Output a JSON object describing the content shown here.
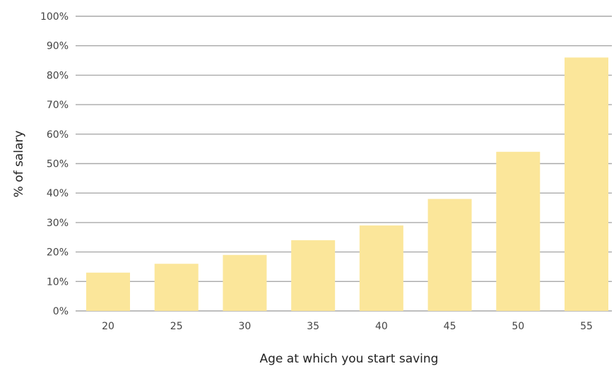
{
  "chart_data": {
    "type": "bar",
    "categories": [
      "20",
      "25",
      "30",
      "35",
      "40",
      "45",
      "50",
      "55"
    ],
    "values": [
      13,
      16,
      19,
      24,
      29,
      38,
      54,
      86
    ],
    "xlabel": "Age at which you start saving",
    "ylabel": "% of salary",
    "ylim": [
      0,
      100
    ],
    "yticks": [
      "0%",
      "10%",
      "20%",
      "30%",
      "40%",
      "50%",
      "60%",
      "70%",
      "80%",
      "90%",
      "100%"
    ],
    "grid": true,
    "bar_color": "#fbe69a",
    "grid_color": "#a9a9a9"
  }
}
